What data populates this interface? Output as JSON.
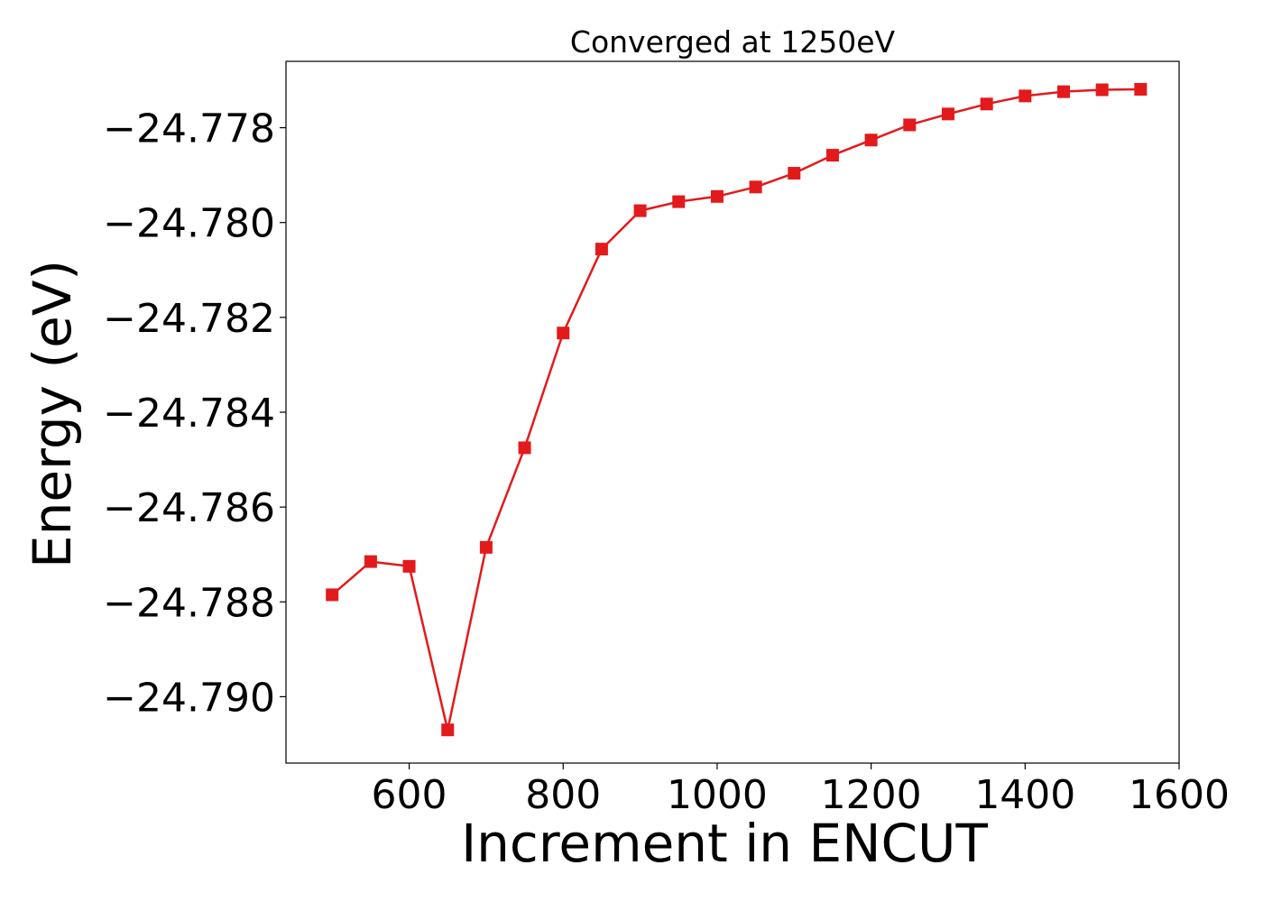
{
  "chart_data": {
    "type": "line",
    "title": "Converged at 1250eV",
    "xlabel": "Increment in ENCUT",
    "ylabel": "Energy (eV)",
    "xlim": [
      440,
      1600
    ],
    "ylim": [
      -24.7914,
      -24.7766
    ],
    "xticks": [
      600,
      800,
      1000,
      1200,
      1400,
      1600
    ],
    "xtick_labels": [
      "600",
      "800",
      "1000",
      "1200",
      "1400",
      "1600"
    ],
    "yticks": [
      -24.778,
      -24.78,
      -24.782,
      -24.784,
      -24.786,
      -24.788,
      -24.79
    ],
    "ytick_labels": [
      "−24.778",
      "−24.780",
      "−24.782",
      "−24.784",
      "−24.786",
      "−24.788",
      "−24.790"
    ],
    "grid": false,
    "marker": "square",
    "series": [
      {
        "color": "#e31a1c",
        "x": [
          500,
          550,
          600,
          650,
          700,
          750,
          800,
          850,
          900,
          950,
          1000,
          1050,
          1100,
          1150,
          1200,
          1250,
          1300,
          1350,
          1400,
          1450,
          1500,
          1550
        ],
        "y": [
          -24.78785,
          -24.78715,
          -24.78725,
          -24.7907,
          -24.78685,
          -24.78475,
          -24.78233,
          -24.78056,
          -24.77975,
          -24.77956,
          -24.77945,
          -24.77925,
          -24.77896,
          -24.77858,
          -24.77826,
          -24.77794,
          -24.77771,
          -24.7775,
          -24.77733,
          -24.77724,
          -24.7772,
          -24.77719
        ]
      }
    ]
  }
}
